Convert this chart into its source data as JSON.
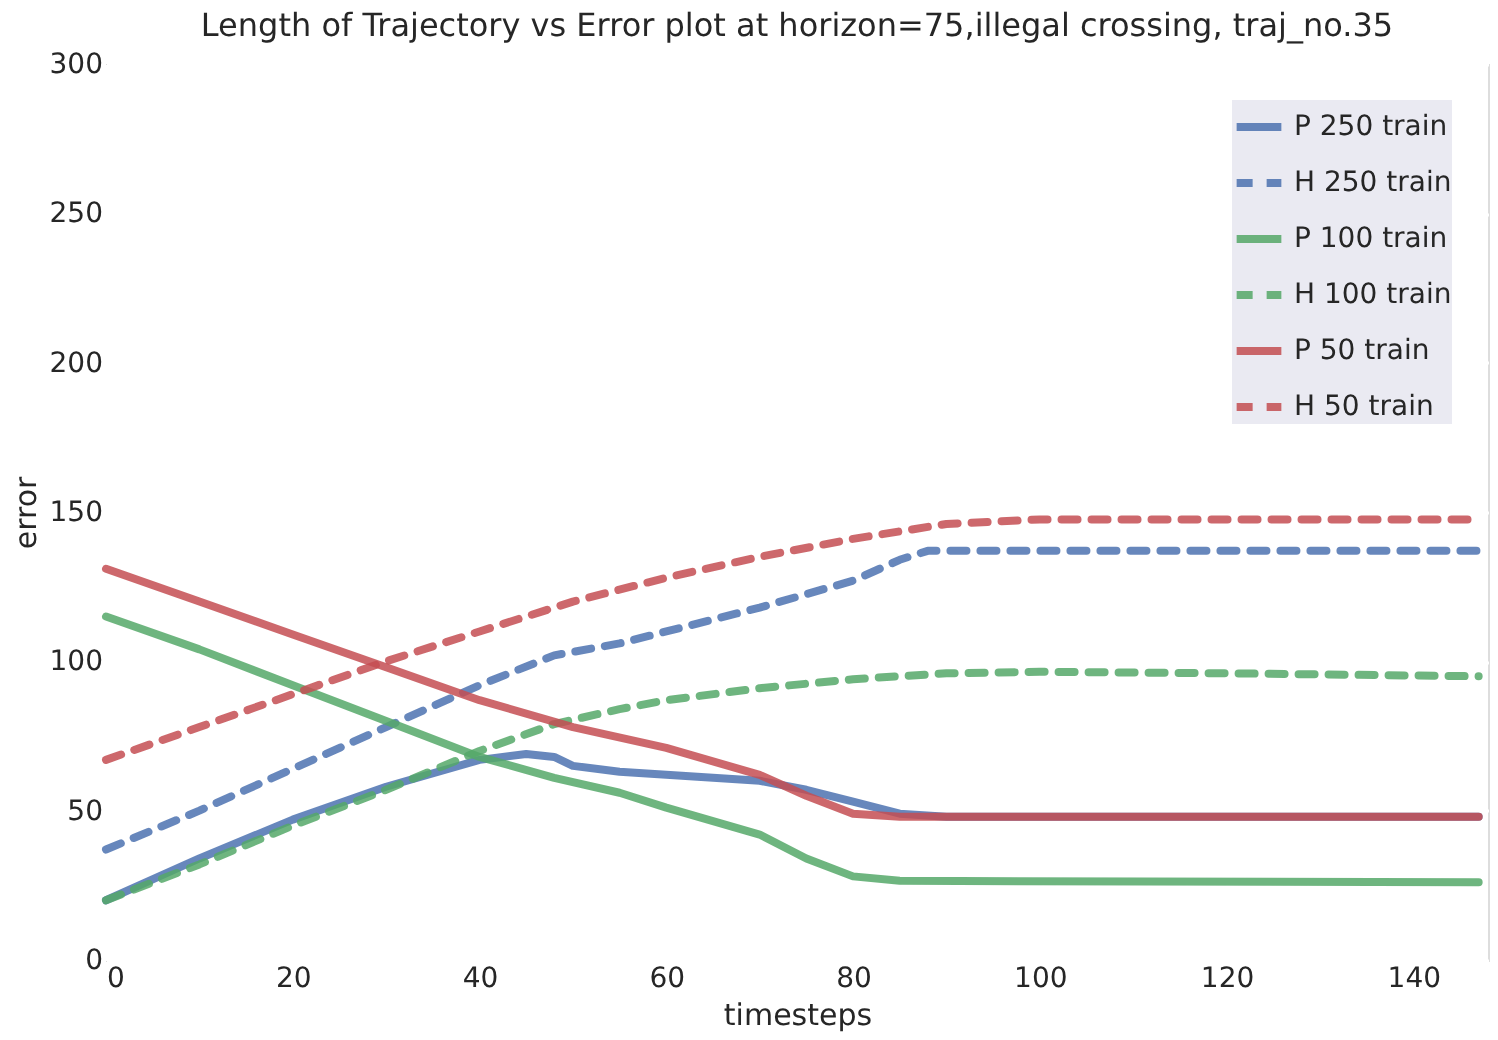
{
  "chart_data": {
    "type": "line",
    "title": "Length of Trajectory vs Error plot at horizon=75,illegal crossing, traj_no.35",
    "xlabel": "timesteps",
    "ylabel": "error",
    "xlim": [
      0,
      148
    ],
    "xticks": [
      0,
      20,
      40,
      60,
      80,
      100,
      120,
      140
    ],
    "ylim": [
      0,
      300
    ],
    "yticks": [
      0,
      50,
      100,
      150,
      200,
      250,
      300
    ],
    "grid": true,
    "legend": "top right",
    "marker": "none",
    "series": [
      {
        "name": "P 250 train",
        "color": "#4c72b0",
        "line_style": "solid",
        "x": [
          0,
          10,
          20,
          30,
          40,
          45,
          48,
          50,
          55,
          60,
          70,
          75,
          80,
          85,
          90,
          147
        ],
        "values": [
          20,
          34,
          47,
          58,
          67,
          69,
          68,
          65,
          63,
          62,
          60,
          57,
          53,
          49,
          48,
          48
        ]
      },
      {
        "name": "H 250 train",
        "color": "#4c72b0",
        "line_style": "dashed",
        "x": [
          0,
          10,
          20,
          30,
          40,
          48,
          55,
          60,
          70,
          80,
          85,
          88,
          100,
          147
        ],
        "values": [
          37,
          50,
          64,
          78,
          92,
          102,
          106,
          110,
          118,
          127,
          134,
          137,
          137,
          137
        ]
      },
      {
        "name": "P 100 train",
        "color": "#55a868",
        "line_style": "solid",
        "x": [
          0,
          10,
          20,
          30,
          40,
          48,
          55,
          60,
          70,
          75,
          80,
          85,
          147
        ],
        "values": [
          115,
          104,
          92,
          80,
          68,
          61,
          56,
          51,
          42,
          34,
          28,
          26.5,
          26
        ]
      },
      {
        "name": "H 100 train",
        "color": "#55a868",
        "line_style": "dashed",
        "x": [
          0,
          10,
          20,
          30,
          40,
          48,
          55,
          60,
          70,
          80,
          90,
          100,
          120,
          147
        ],
        "values": [
          20,
          32,
          45,
          57,
          70,
          79,
          84,
          87,
          91,
          94,
          96,
          96.5,
          96,
          95
        ]
      },
      {
        "name": "P 50 train",
        "color": "#c44e52",
        "line_style": "solid",
        "x": [
          0,
          10,
          20,
          30,
          40,
          50,
          60,
          70,
          75,
          80,
          85,
          147
        ],
        "values": [
          131,
          120,
          109,
          98,
          87,
          78,
          71,
          62,
          55,
          49,
          48,
          48
        ]
      },
      {
        "name": "H 50 train",
        "color": "#c44e52",
        "line_style": "dashed",
        "x": [
          0,
          10,
          20,
          30,
          40,
          50,
          60,
          70,
          80,
          90,
          100,
          147
        ],
        "values": [
          67,
          78,
          89,
          100,
          110,
          120,
          128,
          135,
          141,
          146,
          147.5,
          147.5
        ]
      }
    ]
  }
}
